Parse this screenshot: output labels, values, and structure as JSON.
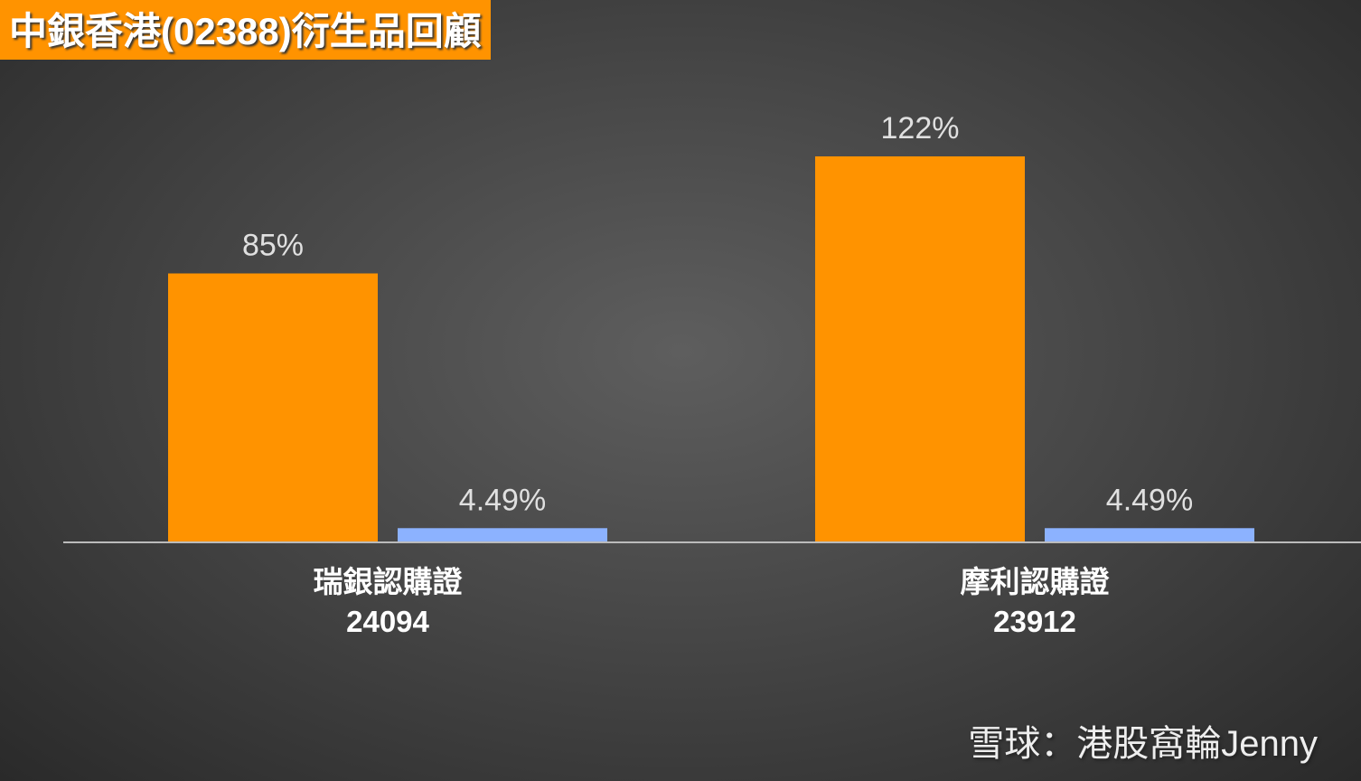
{
  "chart_data": {
    "type": "bar",
    "title": "中銀香港(02388)衍生品回顧",
    "categories": [
      "瑞銀認購證\n24094",
      "摩利認購證\n23912"
    ],
    "series": [
      {
        "color": "#ff9300",
        "values": [
          85,
          122
        ],
        "value_labels": [
          "85%",
          "122%"
        ]
      },
      {
        "color": "#8cb2ff",
        "values": [
          4.49,
          4.49
        ],
        "value_labels": [
          "4.49%",
          "4.49%"
        ]
      }
    ],
    "ylim": [
      0,
      140
    ],
    "watermark": "雪球：港股窩輪Jenny"
  }
}
